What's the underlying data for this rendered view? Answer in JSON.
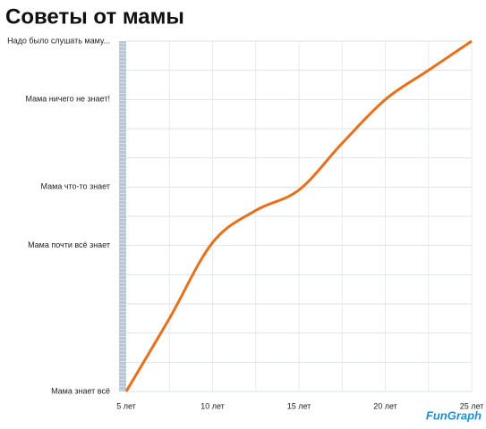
{
  "chart_data": {
    "type": "line",
    "title": "Советы от мамы",
    "x": [
      5,
      7.5,
      10,
      12.5,
      15,
      17.5,
      20,
      22.5,
      25
    ],
    "values": [
      0,
      2.5,
      5.1,
      6.2,
      6.9,
      8.5,
      10,
      11,
      12
    ],
    "color": "#e8701a",
    "xlim": [
      5,
      25
    ],
    "xticks": [
      {
        "value": 5,
        "label": "5 лет"
      },
      {
        "value": 10,
        "label": "10 лет"
      },
      {
        "value": 15,
        "label": "15 лет"
      },
      {
        "value": 20,
        "label": "20 лет"
      },
      {
        "value": 25,
        "label": "25 лет"
      }
    ],
    "xgrid": [
      7.5,
      10,
      12.5,
      15,
      17.5,
      20,
      22.5,
      25
    ],
    "ylim": [
      0,
      12
    ],
    "yticks": [
      {
        "value": 0,
        "label": "Мама знает всё"
      },
      {
        "value": 5,
        "label": "Мама почти всё знает"
      },
      {
        "value": 7,
        "label": "Мама что-то знает"
      },
      {
        "value": 10,
        "label": "Мама ничего не знает!"
      },
      {
        "value": 12,
        "label": "Надо было слушать маму..."
      }
    ],
    "ygrid": [
      0,
      1,
      2,
      3,
      4,
      5,
      6,
      7,
      8,
      9,
      10,
      11,
      12
    ],
    "grid": true,
    "logo": "FunGraph"
  }
}
